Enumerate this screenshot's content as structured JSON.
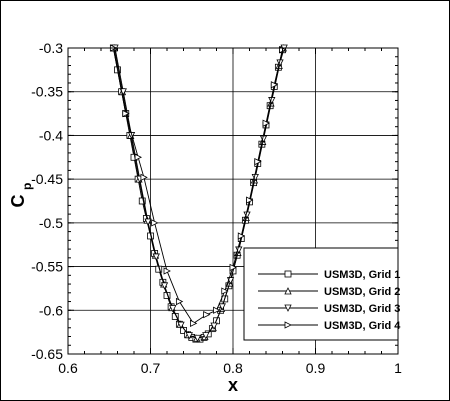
{
  "chart_data": {
    "type": "line",
    "title": "",
    "xlabel": "x",
    "ylabel_main": "C",
    "ylabel_sub": "p",
    "xlim": [
      0.6,
      1.0
    ],
    "ylim": [
      -0.65,
      -0.3
    ],
    "x_ticks": [
      "0.6",
      "0.7",
      "0.8",
      "0.9",
      "1"
    ],
    "y_ticks": [
      "-0.3",
      "-0.35",
      "-0.4",
      "-0.45",
      "-0.5",
      "-0.55",
      "-0.6",
      "-0.65"
    ],
    "grid": true,
    "legend_position": "bottom-right",
    "series": [
      {
        "name": "USM3D, Grid 1",
        "marker": "square",
        "points": [
          [
            0.655,
            -0.3
          ],
          [
            0.66,
            -0.325
          ],
          [
            0.665,
            -0.35
          ],
          [
            0.67,
            -0.375
          ],
          [
            0.675,
            -0.4
          ],
          [
            0.68,
            -0.425
          ],
          [
            0.685,
            -0.45
          ],
          [
            0.69,
            -0.475
          ],
          [
            0.695,
            -0.495
          ],
          [
            0.7,
            -0.515
          ],
          [
            0.705,
            -0.535
          ],
          [
            0.71,
            -0.553
          ],
          [
            0.715,
            -0.568
          ],
          [
            0.72,
            -0.583
          ],
          [
            0.725,
            -0.596
          ],
          [
            0.73,
            -0.607
          ],
          [
            0.735,
            -0.616
          ],
          [
            0.74,
            -0.623
          ],
          [
            0.745,
            -0.628
          ],
          [
            0.75,
            -0.631
          ],
          [
            0.755,
            -0.633
          ],
          [
            0.76,
            -0.633
          ],
          [
            0.765,
            -0.631
          ],
          [
            0.77,
            -0.627
          ],
          [
            0.775,
            -0.621
          ],
          [
            0.78,
            -0.612
          ],
          [
            0.785,
            -0.6
          ],
          [
            0.79,
            -0.587
          ],
          [
            0.795,
            -0.572
          ],
          [
            0.8,
            -0.555
          ],
          [
            0.805,
            -0.537
          ],
          [
            0.81,
            -0.518
          ],
          [
            0.815,
            -0.497
          ],
          [
            0.82,
            -0.476
          ],
          [
            0.825,
            -0.454
          ],
          [
            0.83,
            -0.432
          ],
          [
            0.835,
            -0.41
          ],
          [
            0.84,
            -0.388
          ],
          [
            0.845,
            -0.366
          ],
          [
            0.85,
            -0.344
          ],
          [
            0.855,
            -0.322
          ],
          [
            0.86,
            -0.302
          ]
        ]
      },
      {
        "name": "USM3D, Grid 2",
        "marker": "triangle-up",
        "points": [
          [
            0.656,
            -0.3
          ],
          [
            0.666,
            -0.35
          ],
          [
            0.676,
            -0.4
          ],
          [
            0.686,
            -0.45
          ],
          [
            0.696,
            -0.497
          ],
          [
            0.706,
            -0.537
          ],
          [
            0.716,
            -0.57
          ],
          [
            0.726,
            -0.597
          ],
          [
            0.736,
            -0.616
          ],
          [
            0.746,
            -0.628
          ],
          [
            0.756,
            -0.632
          ],
          [
            0.766,
            -0.63
          ],
          [
            0.776,
            -0.62
          ],
          [
            0.786,
            -0.598
          ],
          [
            0.796,
            -0.569
          ],
          [
            0.806,
            -0.534
          ],
          [
            0.816,
            -0.494
          ],
          [
            0.826,
            -0.451
          ],
          [
            0.836,
            -0.407
          ],
          [
            0.846,
            -0.363
          ],
          [
            0.856,
            -0.32
          ],
          [
            0.861,
            -0.3
          ]
        ]
      },
      {
        "name": "USM3D, Grid 3",
        "marker": "triangle-down",
        "points": [
          [
            0.657,
            -0.3
          ],
          [
            0.667,
            -0.35
          ],
          [
            0.677,
            -0.4
          ],
          [
            0.687,
            -0.45
          ],
          [
            0.697,
            -0.499
          ],
          [
            0.707,
            -0.539
          ],
          [
            0.717,
            -0.572
          ],
          [
            0.727,
            -0.598
          ],
          [
            0.737,
            -0.617
          ],
          [
            0.747,
            -0.629
          ],
          [
            0.757,
            -0.632
          ],
          [
            0.767,
            -0.629
          ],
          [
            0.777,
            -0.618
          ],
          [
            0.787,
            -0.596
          ],
          [
            0.797,
            -0.566
          ],
          [
            0.807,
            -0.531
          ],
          [
            0.817,
            -0.491
          ],
          [
            0.827,
            -0.448
          ],
          [
            0.837,
            -0.404
          ],
          [
            0.847,
            -0.36
          ],
          [
            0.857,
            -0.317
          ],
          [
            0.862,
            -0.3
          ]
        ]
      },
      {
        "name": "USM3D, Grid 4",
        "marker": "triangle-right",
        "points": [
          [
            0.655,
            -0.3
          ],
          [
            0.67,
            -0.375
          ],
          [
            0.685,
            -0.425
          ],
          [
            0.692,
            -0.448
          ],
          [
            0.705,
            -0.5
          ],
          [
            0.72,
            -0.555
          ],
          [
            0.735,
            -0.59
          ],
          [
            0.752,
            -0.615
          ],
          [
            0.768,
            -0.605
          ],
          [
            0.78,
            -0.6
          ],
          [
            0.79,
            -0.578
          ],
          [
            0.8,
            -0.551
          ],
          [
            0.81,
            -0.515
          ],
          [
            0.82,
            -0.474
          ],
          [
            0.83,
            -0.43
          ],
          [
            0.84,
            -0.386
          ],
          [
            0.85,
            -0.342
          ],
          [
            0.86,
            -0.302
          ]
        ]
      }
    ]
  }
}
